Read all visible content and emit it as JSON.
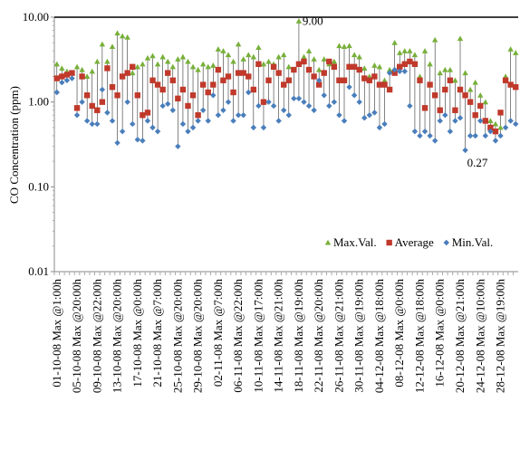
{
  "chart_data": {
    "type": "line",
    "log_scale": true,
    "y_label": "CO Concentration (ppm)",
    "categories": [
      "01-10-08 Max @1:00h",
      null,
      null,
      null,
      "05-10-08 Max @20:00h",
      null,
      null,
      null,
      "09-10-08 Max @22:00h",
      null,
      null,
      null,
      "13-10-08 Max @20:00h",
      null,
      null,
      null,
      "17-10-08 Max @0:00h",
      null,
      null,
      null,
      "21-10-08 Max @7:00h",
      null,
      null,
      null,
      "25-10-08 Max @20:00h",
      null,
      null,
      null,
      "29-10-08 Max @20:00h",
      null,
      null,
      null,
      "02-11-08 Max @7:00h",
      null,
      null,
      null,
      "06-11-08 Max @22:00h",
      null,
      null,
      null,
      "10-11-08 Max @17:00h",
      null,
      null,
      null,
      "14-11-08 Max @21:00h",
      null,
      null,
      null,
      "18-11-08 Max @19:00h",
      null,
      null,
      null,
      "22-11-08 Max @20:00h",
      null,
      null,
      null,
      "26-11-08 Max @21:00h",
      null,
      null,
      null,
      "30-11-08 Max @19:00h",
      null,
      null,
      null,
      "04-12-08 Max @18:00h",
      null,
      null,
      null,
      "08-12-08 Max @0:00h",
      null,
      null,
      null,
      "12-12-08 Max @18:00h",
      null,
      null,
      null,
      "16-12-08 Max @0:00h",
      null,
      null,
      null,
      "20-12-08 Max @21:00h",
      null,
      null,
      null,
      "24-12-08 Max @10:00h",
      null,
      null,
      null,
      "28-12-08 Max @19:00h",
      null,
      null,
      null
    ],
    "series": [
      {
        "name": "Max.Val.",
        "color": "#77b039",
        "marker": "triangle",
        "values": [
          2.8,
          2.5,
          2.3,
          2.2,
          2.6,
          2.4,
          2.0,
          2.3,
          3.0,
          4.8,
          3.0,
          4.5,
          6.5,
          6.0,
          5.8,
          2.2,
          2.6,
          2.8,
          3.3,
          3.5,
          2.8,
          3.4,
          3.0,
          2.6,
          3.2,
          3.4,
          3.0,
          2.6,
          2.4,
          2.8,
          2.6,
          2.7,
          4.2,
          4.0,
          3.6,
          3.0,
          4.8,
          3.2,
          3.6,
          3.4,
          4.4,
          2.8,
          3.0,
          2.8,
          3.4,
          3.6,
          2.6,
          2.4,
          9.0,
          3.4,
          4.0,
          3.2,
          2.4,
          3.2,
          2.8,
          3.0,
          4.6,
          4.5,
          4.6,
          3.6,
          3.4,
          2.5,
          2.0,
          2.7,
          2.6,
          1.8,
          2.4,
          5.0,
          3.8,
          4.0,
          4.0,
          3.6,
          2.0,
          4.0,
          2.8,
          5.4,
          2.2,
          2.4,
          2.4,
          1.8,
          5.6,
          2.2,
          1.4,
          1.7,
          1.2,
          1.0,
          0.6,
          0.55,
          0.5,
          2.0,
          4.2,
          3.8
        ]
      },
      {
        "name": "Average",
        "color": "#c0392b",
        "marker": "square",
        "values": [
          1.9,
          2.0,
          2.1,
          2.2,
          0.85,
          2.0,
          1.2,
          0.9,
          0.8,
          1.0,
          2.5,
          1.5,
          1.2,
          2.0,
          2.2,
          2.6,
          1.2,
          0.7,
          0.75,
          1.8,
          1.6,
          1.4,
          2.2,
          1.8,
          1.1,
          1.4,
          0.9,
          1.2,
          0.7,
          1.6,
          1.3,
          1.6,
          2.4,
          1.8,
          2.0,
          1.3,
          2.2,
          2.2,
          2.0,
          1.4,
          2.8,
          1.0,
          1.8,
          2.6,
          2.2,
          1.6,
          1.8,
          2.4,
          2.8,
          3.0,
          2.4,
          2.0,
          1.6,
          2.2,
          3.0,
          2.6,
          1.8,
          1.8,
          2.6,
          2.6,
          2.4,
          1.9,
          1.8,
          2.0,
          1.6,
          1.6,
          1.4,
          2.2,
          2.6,
          2.8,
          3.0,
          2.8,
          1.8,
          0.85,
          1.6,
          1.2,
          0.8,
          1.4,
          1.8,
          0.8,
          1.4,
          1.2,
          1.0,
          0.7,
          0.9,
          0.6,
          0.5,
          0.45,
          0.75,
          1.8,
          1.6,
          1.5
        ]
      },
      {
        "name": "Min.Val.",
        "color": "#4a7ebb",
        "marker": "diamond",
        "values": [
          1.3,
          1.7,
          1.8,
          1.9,
          0.7,
          1.0,
          0.6,
          0.55,
          0.55,
          1.4,
          0.75,
          0.6,
          0.33,
          0.45,
          1.0,
          0.55,
          0.36,
          0.35,
          0.6,
          0.5,
          0.45,
          0.9,
          0.95,
          0.8,
          0.3,
          0.55,
          0.45,
          0.5,
          0.6,
          0.8,
          0.6,
          1.2,
          0.7,
          0.8,
          1.0,
          0.6,
          0.7,
          0.7,
          1.3,
          0.5,
          0.9,
          0.5,
          1.0,
          0.9,
          0.6,
          0.8,
          0.7,
          1.1,
          1.1,
          1.0,
          0.9,
          0.8,
          1.8,
          1.2,
          0.9,
          1.0,
          0.7,
          0.6,
          1.5,
          1.2,
          1.0,
          0.65,
          0.7,
          0.75,
          0.5,
          0.55,
          2.2,
          2.4,
          2.3,
          2.3,
          0.9,
          0.45,
          0.4,
          0.45,
          0.4,
          0.35,
          0.6,
          0.7,
          0.45,
          0.6,
          0.65,
          0.27,
          0.4,
          0.4,
          0.6,
          0.4,
          0.45,
          0.35,
          0.4,
          0.5,
          0.6,
          0.55
        ]
      }
    ],
    "annotations": [
      "9.00",
      "0.27"
    ],
    "ylim": [
      0.01,
      10
    ],
    "yticks": [
      {
        "value": 0.01,
        "label": "0.01"
      },
      {
        "value": 0.1,
        "label": "0.10"
      },
      {
        "value": 1,
        "label": "1.00"
      },
      {
        "value": 10,
        "label": "10.00"
      }
    ],
    "hilo_lines": true,
    "legend": "bottom-right"
  }
}
